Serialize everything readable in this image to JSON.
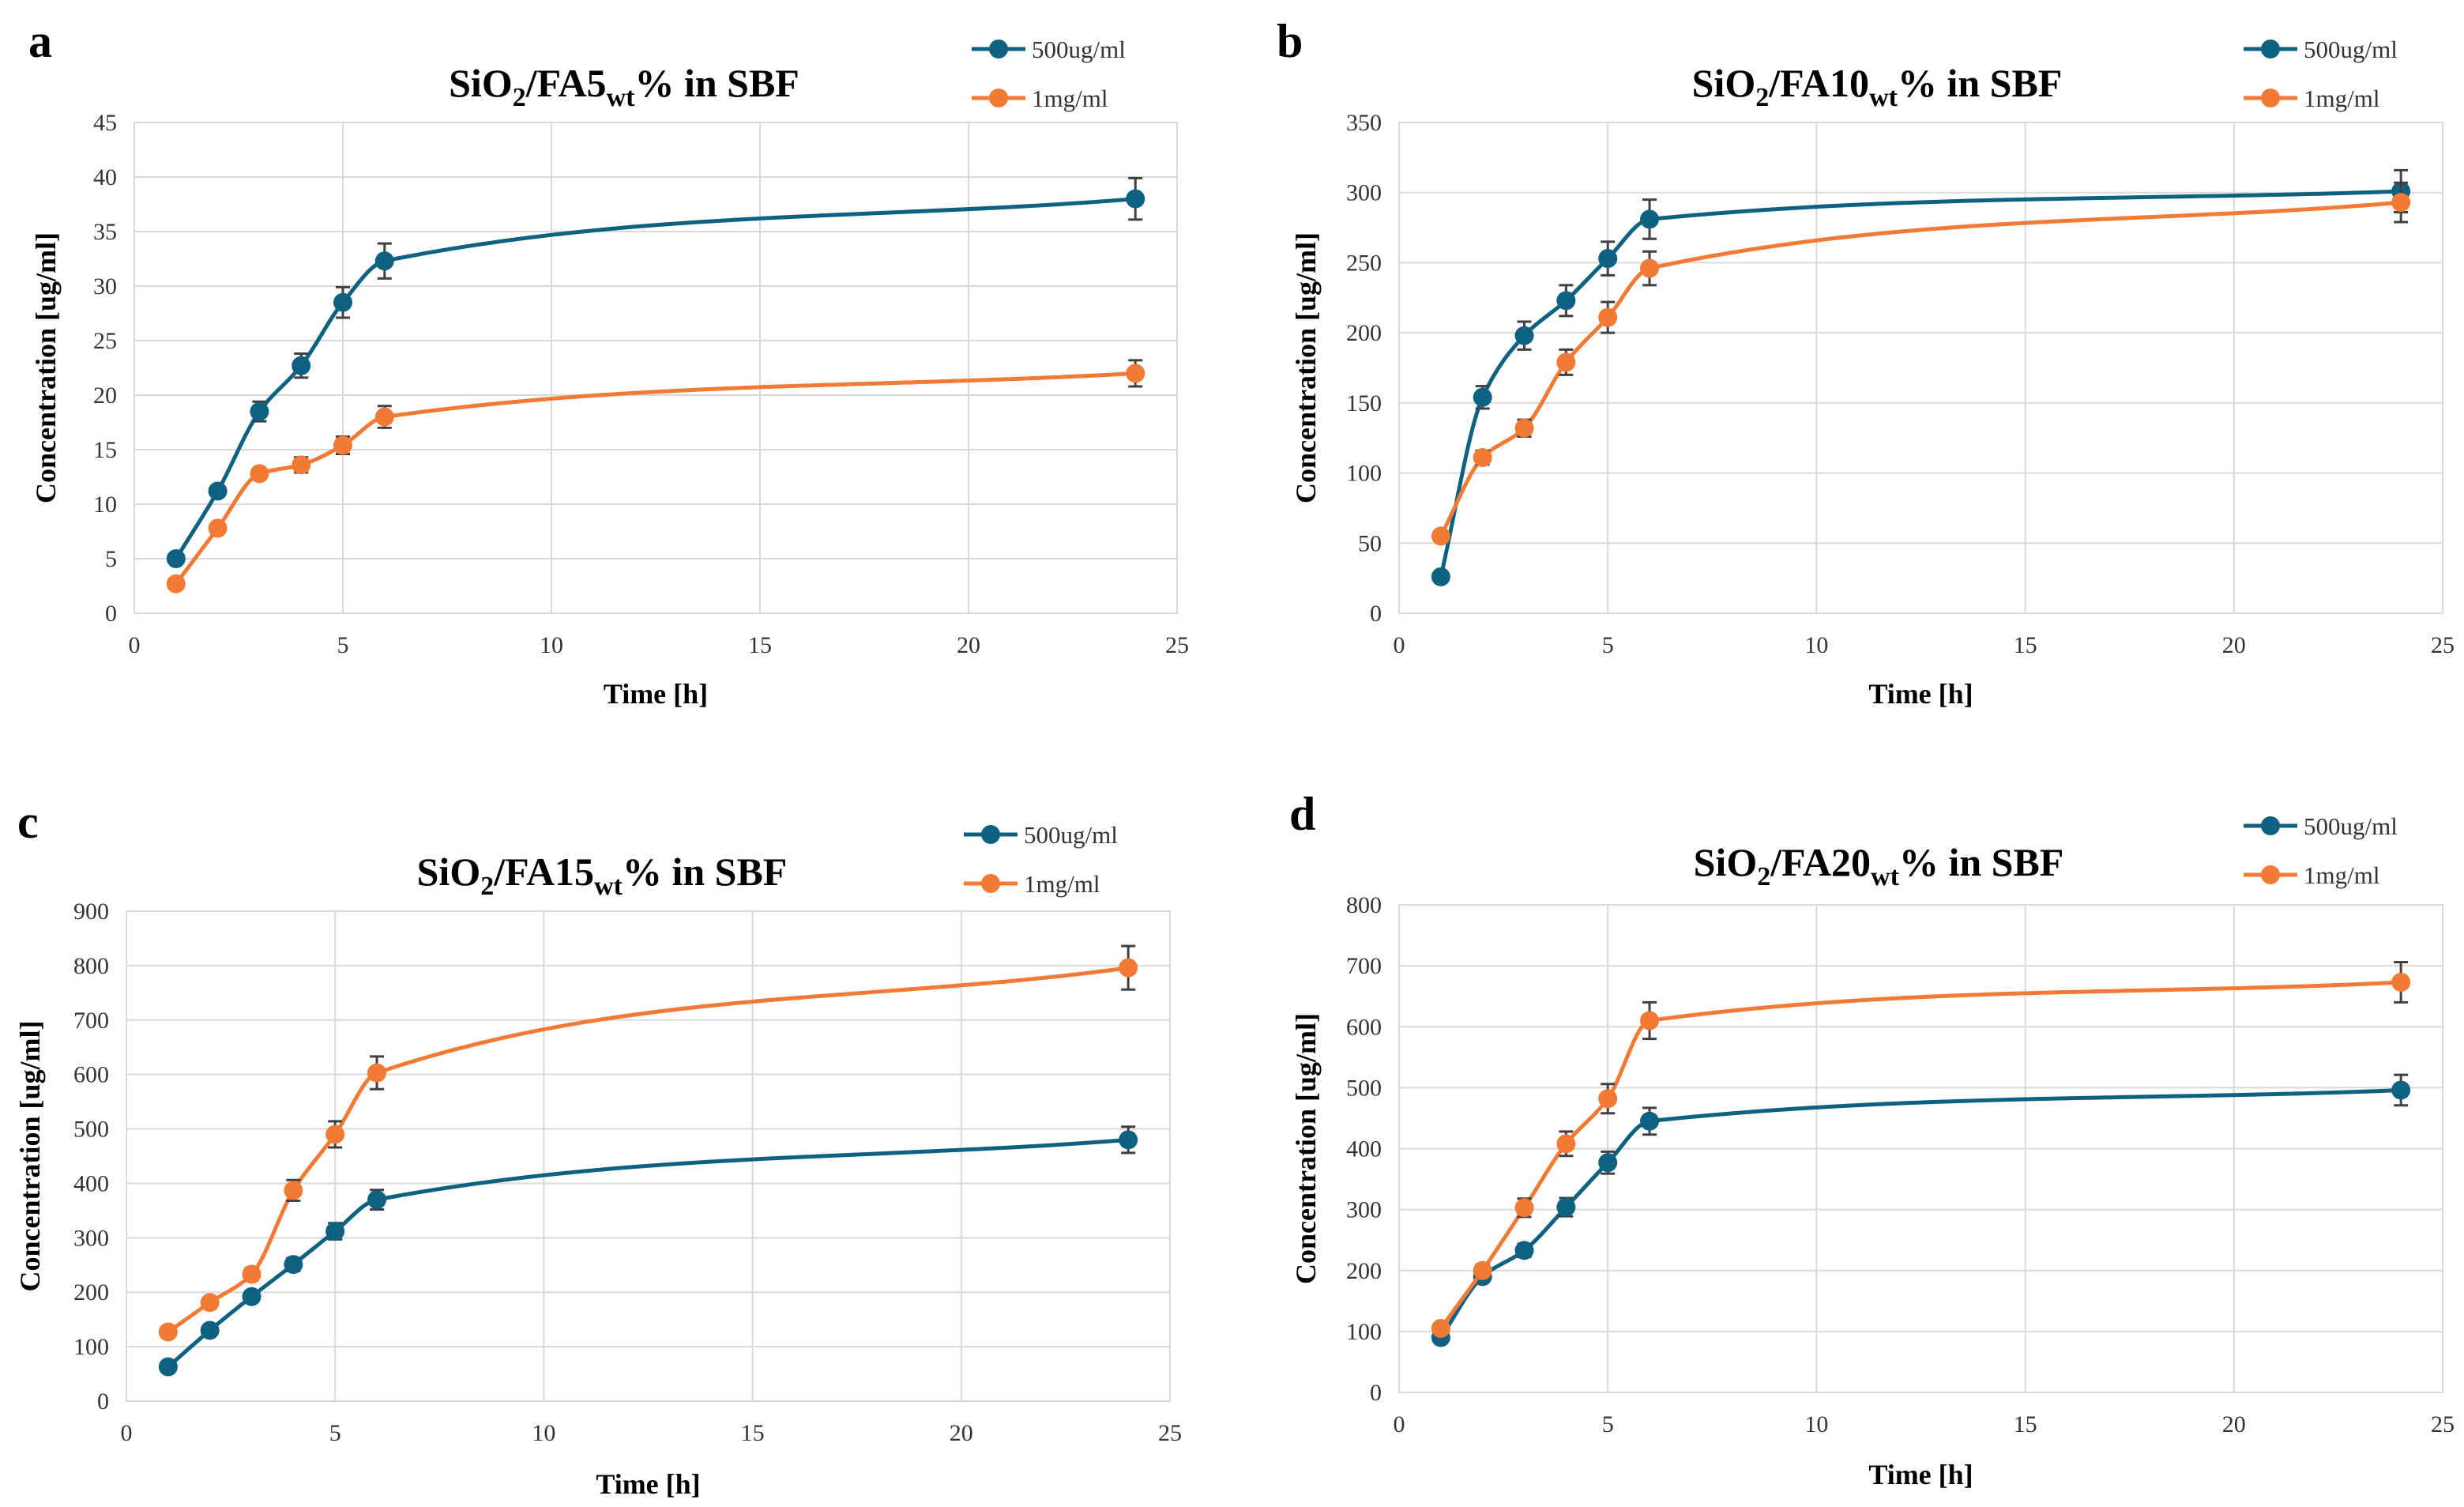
{
  "colors": {
    "series1": "#0e6180",
    "series2": "#f27a35"
  },
  "legend": [
    "500ug/ml",
    "1mg/ml"
  ],
  "chart_data": [
    {
      "type": "line",
      "panel": "a",
      "title": {
        "main": "SiO",
        "sub1": "2",
        "mid": "/FA5",
        "sub2": "wt",
        "tail": "% in SBF"
      },
      "xlabel": "Time [h]",
      "ylabel": "Concentration [ug/ml]",
      "xlim": [
        0,
        25
      ],
      "ylim": [
        0,
        45
      ],
      "xticks": [
        0,
        5,
        10,
        15,
        20,
        25
      ],
      "yticks": [
        0,
        5,
        10,
        15,
        20,
        25,
        30,
        35,
        40,
        45
      ],
      "x": [
        1,
        2,
        3,
        4,
        5,
        6,
        24
      ],
      "series": [
        {
          "name": "500ug/ml",
          "values": [
            5,
            11.2,
            18.5,
            22.7,
            28.5,
            32.3,
            38
          ],
          "errors": [
            0.2,
            0.3,
            0.9,
            1.1,
            1.4,
            1.6,
            1.9
          ]
        },
        {
          "name": "1mg/ml",
          "values": [
            2.7,
            7.8,
            12.8,
            13.6,
            15.4,
            18,
            22
          ],
          "errors": [
            0.1,
            0.2,
            0.3,
            0.7,
            0.8,
            1,
            1.2
          ]
        }
      ]
    },
    {
      "type": "line",
      "panel": "b",
      "title": {
        "main": "SiO",
        "sub1": "2",
        "mid": "/FA10",
        "sub2": "wt",
        "tail": "% in SBF"
      },
      "xlabel": "Time [h]",
      "ylabel": "Concentration [ug/ml]",
      "xlim": [
        0,
        25
      ],
      "ylim": [
        0,
        350
      ],
      "xticks": [
        0,
        5,
        10,
        15,
        20,
        25
      ],
      "yticks": [
        0,
        50,
        100,
        150,
        200,
        250,
        300,
        350
      ],
      "x": [
        1,
        2,
        3,
        4,
        5,
        6,
        24
      ],
      "series": [
        {
          "name": "500ug/ml",
          "values": [
            26,
            154,
            198,
            223,
            253,
            281,
            301
          ],
          "errors": [
            2,
            8,
            10,
            11,
            12,
            14,
            15
          ]
        },
        {
          "name": "1mg/ml",
          "values": [
            55,
            111,
            132,
            179,
            211,
            246,
            293
          ],
          "errors": [
            3,
            5,
            6,
            9,
            11,
            12,
            14
          ]
        }
      ]
    },
    {
      "type": "line",
      "panel": "c",
      "title": {
        "main": "SiO",
        "sub1": "2",
        "mid": "/FA15",
        "sub2": "wt",
        "tail": "% in SBF"
      },
      "xlabel": "Time [h]",
      "ylabel": "Concentration [ug/ml]",
      "xlim": [
        0,
        25
      ],
      "ylim": [
        0,
        900
      ],
      "xticks": [
        0,
        5,
        10,
        15,
        20,
        25
      ],
      "yticks": [
        0,
        100,
        200,
        300,
        400,
        500,
        600,
        700,
        800,
        900
      ],
      "x": [
        1,
        2,
        3,
        4,
        5,
        6,
        24
      ],
      "series": [
        {
          "name": "500ug/ml",
          "values": [
            63,
            130,
            192,
            251,
            312,
            370,
            480
          ],
          "errors": [
            3,
            6,
            9,
            12,
            15,
            18,
            24
          ]
        },
        {
          "name": "1mg/ml",
          "values": [
            127,
            181,
            233,
            387,
            490,
            603,
            796
          ],
          "errors": [
            6,
            9,
            11,
            19,
            24,
            30,
            40
          ]
        }
      ]
    },
    {
      "type": "line",
      "panel": "d",
      "title": {
        "main": "SiO",
        "sub1": "2",
        "mid": "/FA20",
        "sub2": "wt",
        "tail": "% in SBF"
      },
      "xlabel": "Time [h]",
      "ylabel": "Concentration [ug/ml]",
      "xlim": [
        0,
        25
      ],
      "ylim": [
        0,
        800
      ],
      "xticks": [
        0,
        5,
        10,
        15,
        20,
        25
      ],
      "yticks": [
        0,
        100,
        200,
        300,
        400,
        500,
        600,
        700,
        800
      ],
      "x": [
        1,
        2,
        3,
        4,
        5,
        6,
        24
      ],
      "series": [
        {
          "name": "500ug/ml",
          "values": [
            90,
            190,
            233,
            304,
            377,
            445,
            496
          ],
          "errors": [
            4,
            9,
            11,
            15,
            18,
            22,
            25
          ]
        },
        {
          "name": "1mg/ml",
          "values": [
            105,
            200,
            303,
            408,
            482,
            610,
            673
          ],
          "errors": [
            5,
            10,
            15,
            20,
            24,
            30,
            33
          ]
        }
      ]
    }
  ]
}
